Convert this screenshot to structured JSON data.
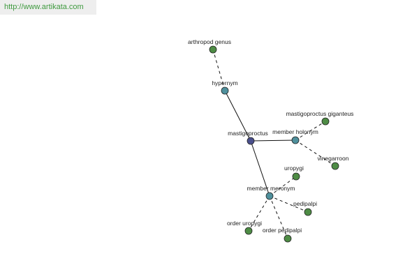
{
  "header": {
    "url": "http://www.artikata.com"
  },
  "nodes": [
    {
      "label": "arthropod genus"
    },
    {
      "label": "hypernym"
    },
    {
      "label": "mastigoproctus"
    },
    {
      "label": "member holonym"
    },
    {
      "label": "mastigoproctus giganteus"
    },
    {
      "label": "vinegarroon"
    },
    {
      "label": "uropygi"
    },
    {
      "label": "member meronym"
    },
    {
      "label": "pedipalpi"
    },
    {
      "label": "order uropygi"
    },
    {
      "label": "order pedipalpi"
    }
  ]
}
